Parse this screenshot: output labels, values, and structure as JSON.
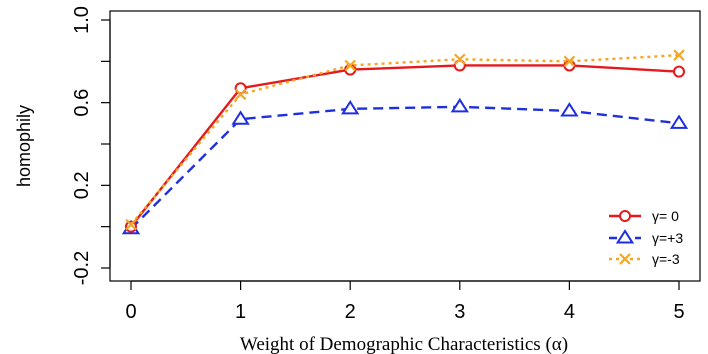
{
  "chart_data": {
    "type": "line",
    "title": "",
    "xlabel": "Weight of Demographic Characteristics (α)",
    "ylabel": "homophily",
    "x": [
      0,
      1,
      2,
      3,
      4,
      5
    ],
    "xlim": [
      0,
      5
    ],
    "ylim": [
      -0.2,
      1.0
    ],
    "x_ticks": [
      "0",
      "1",
      "2",
      "3",
      "4",
      "5"
    ],
    "y_ticks": [
      "-0.2",
      "0.2",
      "0.6",
      "1.0"
    ],
    "grid": false,
    "legend_position": "bottom-right",
    "series": [
      {
        "name": "γ= 0",
        "values": [
          0.0,
          0.67,
          0.76,
          0.78,
          0.78,
          0.75
        ],
        "color": "#e41a1c",
        "marker": "circle",
        "line": "solid"
      },
      {
        "name": "γ=+3",
        "values": [
          -0.01,
          0.52,
          0.57,
          0.58,
          0.56,
          0.5
        ],
        "color": "#1f2fe0",
        "marker": "triangle",
        "line": "dashed"
      },
      {
        "name": "γ=-3",
        "values": [
          0.01,
          0.64,
          0.78,
          0.81,
          0.8,
          0.83
        ],
        "color": "#f5a623",
        "marker": "x",
        "line": "dotted"
      }
    ]
  }
}
